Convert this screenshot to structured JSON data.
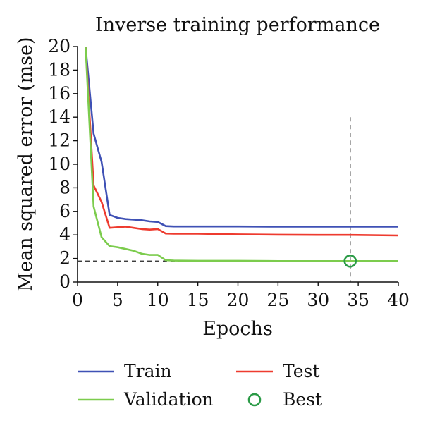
{
  "chart_data": {
    "type": "line",
    "title": "Inverse training performance",
    "xlabel": "Epochs",
    "ylabel": "Mean squared error (mse)",
    "xlim": [
      0,
      40
    ],
    "ylim": [
      0,
      20
    ],
    "xticks": [
      0,
      5,
      10,
      15,
      20,
      25,
      30,
      35,
      40
    ],
    "yticks": [
      0,
      2,
      4,
      6,
      8,
      10,
      12,
      14,
      16,
      18,
      20
    ],
    "grid": false,
    "legend_position": "bottom",
    "series": [
      {
        "name": "Train",
        "color": "#3f51b5",
        "x": [
          1,
          2,
          3,
          4,
          5,
          6,
          7,
          8,
          9,
          10,
          11,
          12,
          15,
          20,
          25,
          30,
          34,
          40
        ],
        "y": [
          20,
          12.6,
          10.2,
          5.7,
          5.45,
          5.35,
          5.3,
          5.25,
          5.15,
          5.1,
          4.75,
          4.72,
          4.72,
          4.72,
          4.7,
          4.7,
          4.7,
          4.7
        ]
      },
      {
        "name": "Test",
        "color": "#ee3b2f",
        "x": [
          1,
          2,
          3,
          4,
          5,
          6,
          7,
          8,
          9,
          10,
          11,
          12,
          15,
          20,
          25,
          30,
          34,
          40
        ],
        "y": [
          20,
          8.2,
          6.8,
          4.6,
          4.65,
          4.7,
          4.6,
          4.5,
          4.45,
          4.5,
          4.12,
          4.1,
          4.1,
          4.05,
          4.02,
          4.0,
          4.0,
          3.95
        ]
      },
      {
        "name": "Validation",
        "color": "#7ccc4d",
        "x": [
          1,
          2,
          3,
          4,
          5,
          6,
          7,
          8,
          9,
          10,
          11,
          12,
          15,
          20,
          25,
          30,
          34,
          40
        ],
        "y": [
          20,
          6.4,
          3.8,
          3.05,
          2.95,
          2.8,
          2.65,
          2.4,
          2.3,
          2.3,
          1.85,
          1.82,
          1.8,
          1.8,
          1.78,
          1.78,
          1.78,
          1.78
        ]
      }
    ],
    "best": {
      "name": "Best",
      "x": 34,
      "y": 1.78,
      "color": "#2a9a46"
    },
    "best_line_top_y": 14
  }
}
